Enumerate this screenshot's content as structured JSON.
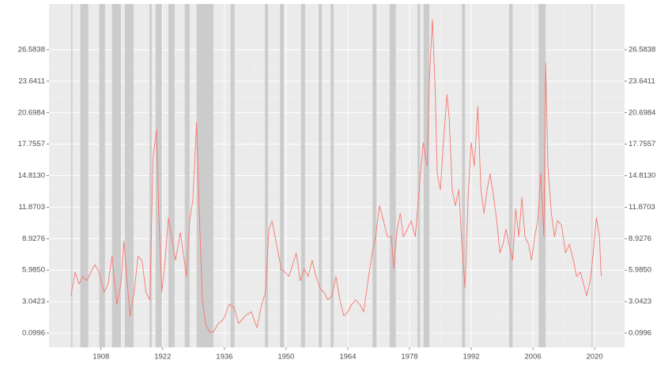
{
  "chart_data": {
    "type": "line",
    "x": [
      1901.2,
      1902.1,
      1903.0,
      1903.9,
      1904.8,
      1905.7,
      1906.6,
      1907.5,
      1908.0,
      1908.7,
      1909.6,
      1910.5,
      1911.6,
      1912.5,
      1913.2,
      1913.7,
      1914.6,
      1915.5,
      1916.4,
      1917.3,
      1918.2,
      1919.1,
      1919.8,
      1920.6,
      1921.1,
      1921.8,
      1922.7,
      1923.3,
      1924.0,
      1924.9,
      1926.0,
      1926.9,
      1927.4,
      1928.1,
      1928.8,
      1929.7,
      1930.3,
      1931.0,
      1931.7,
      1932.6,
      1933.5,
      1934.6,
      1935.8,
      1937.1,
      1938.2,
      1939.2,
      1940.7,
      1942.1,
      1943.4,
      1944.3,
      1945.3,
      1946.1,
      1946.8,
      1947.5,
      1948.2,
      1948.9,
      1949.7,
      1950.6,
      1951.5,
      1952.3,
      1953.2,
      1954.1,
      1955.0,
      1955.9,
      1956.8,
      1957.7,
      1958.6,
      1959.5,
      1960.4,
      1961.3,
      1962.2,
      1963.1,
      1964.0,
      1964.9,
      1965.8,
      1966.7,
      1967.6,
      1968.5,
      1969.4,
      1970.3,
      1971.2,
      1972.1,
      1973.0,
      1973.9,
      1974.4,
      1975.2,
      1975.9,
      1976.6,
      1977.5,
      1978.4,
      1979.3,
      1980.2,
      1981.1,
      1982.0,
      1982.5,
      1983.2,
      1983.8,
      1984.3,
      1985.0,
      1985.7,
      1986.5,
      1987.0,
      1987.7,
      1988.4,
      1989.2,
      1989.9,
      1990.6,
      1991.3,
      1992.0,
      1992.7,
      1993.5,
      1994.2,
      1994.9,
      1995.6,
      1996.3,
      1997.1,
      1997.8,
      1998.5,
      1999.2,
      1999.9,
      2000.6,
      2001.4,
      2002.1,
      2002.8,
      2003.5,
      2004.2,
      2005.0,
      2005.7,
      2006.4,
      2007.1,
      2007.8,
      2008.5,
      2008.9,
      2009.4,
      2010.2,
      2010.9,
      2011.6,
      2012.5,
      2013.4,
      2014.3,
      2015.2,
      2015.9,
      2016.8,
      2017.5,
      2018.2,
      2019.0,
      2019.7,
      2020.4,
      2021.1,
      2021.5
    ],
    "series": [
      {
        "color": "#f8766d",
        "values": [
          3.6,
          5.8,
          4.7,
          5.4,
          5.0,
          5.8,
          6.5,
          5.8,
          5.0,
          3.9,
          4.7,
          7.3,
          2.8,
          4.7,
          8.7,
          6.1,
          1.7,
          3.9,
          7.3,
          6.9,
          3.9,
          3.2,
          16.5,
          19.1,
          11.3,
          3.9,
          7.6,
          10.9,
          9.1,
          6.9,
          9.5,
          6.9,
          5.4,
          10.6,
          12.4,
          19.8,
          11.3,
          3.2,
          1.0,
          0.2,
          0.2,
          1.0,
          1.4,
          2.8,
          2.5,
          1.0,
          1.7,
          2.1,
          0.6,
          2.5,
          3.9,
          9.8,
          10.6,
          9.1,
          7.6,
          6.1,
          5.8,
          5.4,
          6.5,
          7.6,
          5.0,
          6.1,
          5.4,
          6.9,
          5.4,
          4.3,
          3.9,
          3.2,
          3.6,
          5.4,
          3.2,
          1.7,
          2.1,
          2.8,
          3.2,
          2.8,
          2.1,
          4.7,
          7.3,
          9.1,
          12.0,
          10.6,
          9.1,
          9.1,
          6.1,
          9.8,
          11.3,
          9.1,
          9.8,
          10.6,
          9.1,
          13.5,
          17.9,
          15.7,
          23.8,
          29.4,
          23.1,
          15.0,
          13.5,
          17.9,
          22.4,
          20.2,
          13.5,
          12.0,
          13.5,
          8.4,
          4.3,
          12.8,
          17.9,
          15.7,
          21.3,
          13.5,
          11.3,
          13.5,
          15.0,
          12.8,
          10.6,
          7.6,
          8.4,
          9.8,
          8.4,
          6.9,
          11.7,
          9.1,
          12.8,
          9.1,
          8.4,
          6.9,
          9.1,
          10.6,
          15.0,
          9.1,
          25.3,
          15.7,
          11.3,
          9.1,
          10.6,
          10.2,
          7.6,
          8.4,
          6.9,
          5.4,
          5.8,
          4.7,
          3.6,
          5.0,
          7.6,
          10.9,
          9.1,
          5.4
        ]
      }
    ],
    "shaded_periods": [
      [
        1901.2,
        1901.5
      ],
      [
        1903.3,
        1905.1
      ],
      [
        1907.6,
        1908.9
      ],
      [
        1910.5,
        1912.5
      ],
      [
        1913.4,
        1915.4
      ],
      [
        1919.0,
        1919.5
      ],
      [
        1920.4,
        1921.8
      ],
      [
        1923.3,
        1924.7
      ],
      [
        1927.0,
        1928.1
      ],
      [
        1929.7,
        1933.5
      ],
      [
        1937.4,
        1938.3
      ],
      [
        1945.2,
        1945.9
      ],
      [
        1948.6,
        1949.5
      ],
      [
        1953.4,
        1954.3
      ],
      [
        1957.4,
        1958.1
      ],
      [
        1960.1,
        1960.8
      ],
      [
        1969.6,
        1970.5
      ],
      [
        1973.5,
        1974.9
      ],
      [
        1979.8,
        1980.4
      ],
      [
        1981.2,
        1982.5
      ],
      [
        1989.9,
        1990.6
      ],
      [
        2000.6,
        2001.4
      ],
      [
        2007.3,
        2008.9
      ],
      [
        2019.3,
        2019.5
      ]
    ],
    "shade_color": "#cccccc",
    "xlim": [
      1896.2,
      2026.8
    ],
    "xticks": [
      1908,
      1922,
      1936,
      1950,
      1964,
      1978,
      1992,
      2006,
      2020
    ],
    "ylim": [
      -1.23,
      30.86
    ],
    "yticks": [
      0.0996,
      3.0423,
      {
        "value": 5.985,
        "label": "5.9850"
      },
      8.9276,
      11.8703,
      {
        "value": 14.813,
        "label": "14.8130"
      },
      17.7557,
      20.6984,
      23.6411,
      26.5838
    ],
    "secondary_y_axis": true,
    "grid": true
  }
}
